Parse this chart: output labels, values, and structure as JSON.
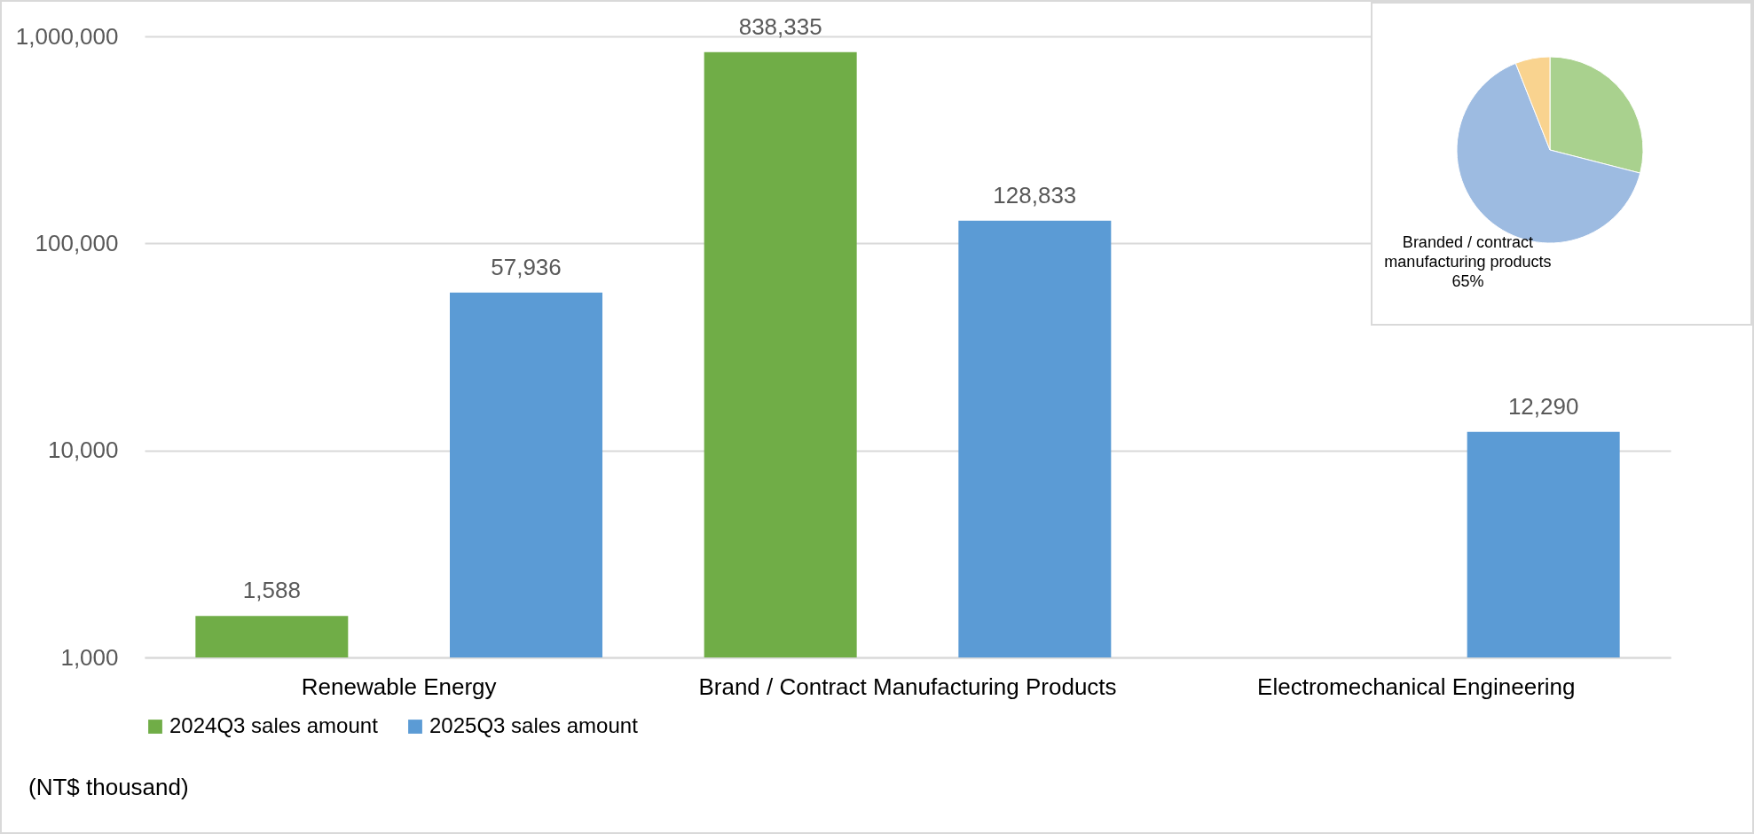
{
  "chart_data": [
    {
      "type": "bar",
      "categories": [
        "Renewable Energy",
        "Brand / Contract Manufacturing Products",
        "Electromechanical Engineering"
      ],
      "series": [
        {
          "name": "2024Q3 sales amount",
          "color": "#70ad47",
          "values": [
            1588,
            838335,
            null
          ],
          "value_labels": [
            "1,588",
            "838,335",
            null
          ]
        },
        {
          "name": "2025Q3 sales amount",
          "color": "#5b9bd5",
          "values": [
            57936,
            128833,
            12290
          ],
          "value_labels": [
            "57,936",
            "128,833",
            "12,290"
          ]
        }
      ],
      "log": true,
      "ylim": [
        1000,
        1000000
      ],
      "yticks": [
        {
          "value": 1000,
          "label": "1,000"
        },
        {
          "value": 10000,
          "label": "10,000"
        },
        {
          "value": 100000,
          "label": "100,000"
        },
        {
          "value": 1000000,
          "label": "1,000,000"
        }
      ],
      "grid": "y",
      "legend": "bottom",
      "annotations": [
        "(NT$ thousand)"
      ]
    },
    {
      "type": "pie",
      "categories": [
        null,
        "Branded / contract manufacturing products",
        null
      ],
      "values": [
        29,
        65,
        6
      ],
      "colors": [
        "#a9d18e",
        "#9dbbe1",
        "#f9d38f"
      ],
      "value_labels": [
        null,
        "65%",
        null
      ]
    }
  ]
}
